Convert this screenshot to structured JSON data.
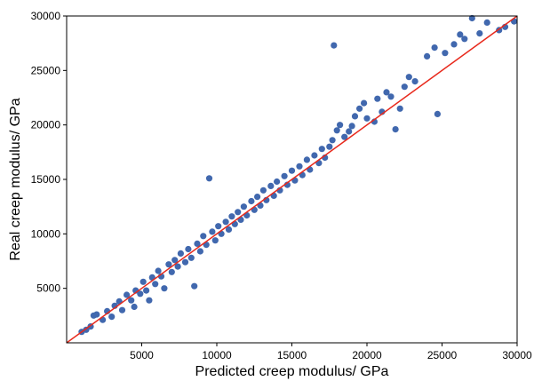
{
  "chart_data": {
    "type": "scatter",
    "xlabel": "Predicted creep modulus/ GPa",
    "ylabel": "Real creep modulus/ GPa",
    "xlim": [
      0,
      30000
    ],
    "ylim": [
      0,
      30000
    ],
    "x_ticks": [
      5000,
      10000,
      15000,
      20000,
      25000,
      30000
    ],
    "y_ticks": [
      5000,
      10000,
      15000,
      20000,
      25000,
      30000
    ],
    "grid": false,
    "point_color": "#4168AE",
    "line_color": "#E8291C",
    "reference_line": {
      "from": [
        0,
        0
      ],
      "to": [
        30000,
        30000
      ]
    },
    "points": [
      [
        1000,
        1000
      ],
      [
        1300,
        1200
      ],
      [
        1600,
        1500
      ],
      [
        1800,
        2500
      ],
      [
        2000,
        2600
      ],
      [
        2400,
        2100
      ],
      [
        2700,
        2900
      ],
      [
        3000,
        2400
      ],
      [
        3200,
        3400
      ],
      [
        3500,
        3800
      ],
      [
        3700,
        3000
      ],
      [
        4000,
        4400
      ],
      [
        4300,
        3900
      ],
      [
        4500,
        3300
      ],
      [
        4600,
        4800
      ],
      [
        4900,
        4500
      ],
      [
        5100,
        5600
      ],
      [
        5300,
        4800
      ],
      [
        5500,
        3900
      ],
      [
        5700,
        6000
      ],
      [
        5900,
        5400
      ],
      [
        6100,
        6600
      ],
      [
        6300,
        6100
      ],
      [
        6500,
        5000
      ],
      [
        6800,
        7200
      ],
      [
        7000,
        6500
      ],
      [
        7200,
        7600
      ],
      [
        7400,
        7000
      ],
      [
        7600,
        8200
      ],
      [
        7900,
        7400
      ],
      [
        8100,
        8600
      ],
      [
        8300,
        7800
      ],
      [
        8500,
        5200
      ],
      [
        8700,
        9100
      ],
      [
        8900,
        8400
      ],
      [
        9100,
        9800
      ],
      [
        9300,
        9000
      ],
      [
        9500,
        15100
      ],
      [
        9700,
        10200
      ],
      [
        9900,
        9400
      ],
      [
        10100,
        10700
      ],
      [
        10300,
        10000
      ],
      [
        10600,
        11100
      ],
      [
        10800,
        10400
      ],
      [
        11000,
        11600
      ],
      [
        11200,
        10900
      ],
      [
        11400,
        12000
      ],
      [
        11600,
        11300
      ],
      [
        11800,
        12500
      ],
      [
        12000,
        11700
      ],
      [
        12300,
        13000
      ],
      [
        12500,
        12200
      ],
      [
        12700,
        13400
      ],
      [
        12900,
        12600
      ],
      [
        13100,
        14000
      ],
      [
        13300,
        13100
      ],
      [
        13600,
        14400
      ],
      [
        13800,
        13500
      ],
      [
        14000,
        14800
      ],
      [
        14200,
        14000
      ],
      [
        14500,
        15300
      ],
      [
        14700,
        14500
      ],
      [
        15000,
        15800
      ],
      [
        15200,
        14900
      ],
      [
        15500,
        16200
      ],
      [
        15700,
        15400
      ],
      [
        16000,
        16800
      ],
      [
        16200,
        15900
      ],
      [
        16500,
        17200
      ],
      [
        16800,
        16500
      ],
      [
        17000,
        17800
      ],
      [
        17200,
        17000
      ],
      [
        17500,
        18000
      ],
      [
        17800,
        27300
      ],
      [
        17700,
        18600
      ],
      [
        18000,
        19500
      ],
      [
        18200,
        20000
      ],
      [
        18500,
        18900
      ],
      [
        18800,
        19400
      ],
      [
        19000,
        19900
      ],
      [
        19200,
        20800
      ],
      [
        19500,
        21500
      ],
      [
        19800,
        22000
      ],
      [
        20000,
        20600
      ],
      [
        20500,
        20300
      ],
      [
        20700,
        22400
      ],
      [
        21000,
        21200
      ],
      [
        21300,
        23000
      ],
      [
        21600,
        22600
      ],
      [
        21900,
        19600
      ],
      [
        22200,
        21500
      ],
      [
        22500,
        23500
      ],
      [
        22800,
        24400
      ],
      [
        23200,
        24000
      ],
      [
        24000,
        26300
      ],
      [
        24500,
        27100
      ],
      [
        24700,
        21000
      ],
      [
        25200,
        26600
      ],
      [
        25800,
        27400
      ],
      [
        26200,
        28300
      ],
      [
        26500,
        27900
      ],
      [
        27000,
        29800
      ],
      [
        27500,
        28400
      ],
      [
        28000,
        29400
      ],
      [
        28800,
        28700
      ],
      [
        29200,
        29000
      ],
      [
        29800,
        29500
      ]
    ]
  }
}
